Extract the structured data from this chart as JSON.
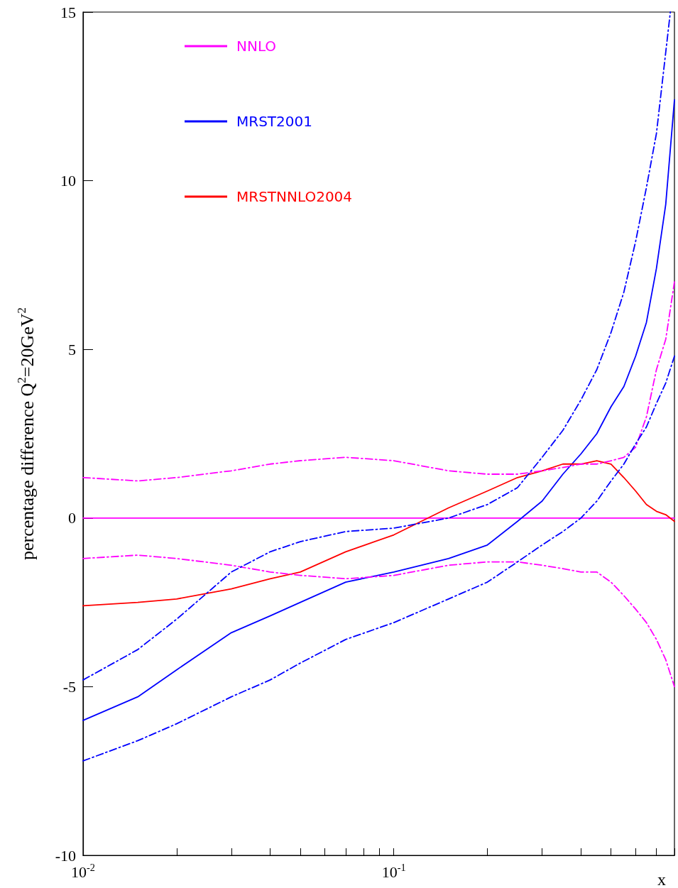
{
  "chart_data": {
    "type": "line",
    "xlabel": "x",
    "ylabel": "percentage difference Q$^{2}$=20GeV$^{2}$",
    "log": "x",
    "xlim": [
      0.01,
      0.8
    ],
    "ylim": [
      -10,
      15
    ],
    "xticks": [
      {
        "value": 0.01,
        "label": "10$^{-2}$"
      },
      {
        "value": 0.02,
        "label": null
      },
      {
        "value": 0.03,
        "label": null
      },
      {
        "value": 0.04,
        "label": null
      },
      {
        "value": 0.05,
        "label": null
      },
      {
        "value": 0.06,
        "label": null
      },
      {
        "value": 0.07,
        "label": null
      },
      {
        "value": 0.08,
        "label": null
      },
      {
        "value": 0.09,
        "label": null
      },
      {
        "value": 0.1,
        "label": "10$^{-1}$"
      },
      {
        "value": 0.2,
        "label": null
      },
      {
        "value": 0.3,
        "label": null
      },
      {
        "value": 0.4,
        "label": null
      },
      {
        "value": 0.5,
        "label": null
      },
      {
        "value": 0.6,
        "label": null
      },
      {
        "value": 0.7,
        "label": null
      },
      {
        "value": 0.8,
        "label": null
      }
    ],
    "yticks": [
      -10,
      -5,
      0,
      5,
      10,
      15
    ],
    "x": [
      0.01,
      0.015,
      0.02,
      0.03,
      0.04,
      0.05,
      0.07,
      0.1,
      0.15,
      0.2,
      0.25,
      0.3,
      0.35,
      0.4,
      0.45,
      0.5,
      0.55,
      0.6,
      0.65,
      0.7,
      0.75,
      0.8
    ],
    "marker": "none",
    "grid": false,
    "legend": "top left",
    "series": [
      {
        "name": "NNLO",
        "color": "#ff00ff",
        "line_style": "solid",
        "values": [
          0,
          0,
          0,
          0,
          0,
          0,
          0,
          0,
          0,
          0,
          0,
          0,
          0,
          0,
          0,
          0,
          0,
          0,
          0,
          0,
          0,
          0
        ]
      },
      {
        "name": "MRST2001",
        "color": "#0000ff",
        "line_style": "solid",
        "values": [
          -6.0,
          -5.3,
          -4.5,
          -3.4,
          -2.9,
          -2.5,
          -1.9,
          -1.6,
          -1.2,
          -0.8,
          -0.1,
          0.5,
          1.3,
          1.9,
          2.5,
          3.3,
          3.9,
          4.8,
          5.8,
          7.4,
          9.3,
          12.4
        ]
      },
      {
        "name": "MRSTNNLO2004",
        "color": "#ff0000",
        "line_style": "solid",
        "values": [
          -2.6,
          -2.5,
          -2.4,
          -2.1,
          -1.8,
          -1.6,
          -1.0,
          -0.5,
          0.3,
          0.8,
          1.2,
          1.4,
          1.6,
          1.6,
          1.7,
          1.6,
          1.2,
          0.8,
          0.4,
          0.2,
          0.1,
          -0.1
        ]
      },
      {
        "color": "#ff00ff",
        "line_style": "dashed",
        "values": [
          1.2,
          1.1,
          1.2,
          1.4,
          1.6,
          1.7,
          1.8,
          1.7,
          1.4,
          1.3,
          1.3,
          1.4,
          1.5,
          1.6,
          1.6,
          1.7,
          1.8,
          2.1,
          3.0,
          4.4,
          5.3,
          7.0
        ]
      },
      {
        "color": "#ff00ff",
        "line_style": "dashed",
        "values": [
          -1.2,
          -1.1,
          -1.2,
          -1.4,
          -1.6,
          -1.7,
          -1.8,
          -1.7,
          -1.4,
          -1.3,
          -1.3,
          -1.4,
          -1.5,
          -1.6,
          -1.6,
          -1.9,
          -2.3,
          -2.7,
          -3.1,
          -3.6,
          -4.2,
          -5.0
        ]
      },
      {
        "color": "#0000ff",
        "line_style": "dashed",
        "x": [
          0.01,
          0.015,
          0.02,
          0.03,
          0.04,
          0.05,
          0.07,
          0.1,
          0.15,
          0.2,
          0.25,
          0.3,
          0.35,
          0.4,
          0.45,
          0.5,
          0.55,
          0.6,
          0.65,
          0.7,
          0.776
        ],
        "values": [
          -4.8,
          -3.9,
          -3.0,
          -1.6,
          -1.0,
          -0.7,
          -0.4,
          -0.3,
          0.0,
          0.4,
          0.9,
          1.8,
          2.6,
          3.5,
          4.4,
          5.5,
          6.7,
          8.2,
          9.8,
          11.4,
          15.0
        ]
      },
      {
        "color": "#0000ff",
        "line_style": "dashed",
        "values": [
          -7.2,
          -6.6,
          -6.1,
          -5.3,
          -4.8,
          -4.3,
          -3.6,
          -3.1,
          -2.4,
          -1.9,
          -1.3,
          -0.8,
          -0.4,
          0.0,
          0.5,
          1.1,
          1.6,
          2.2,
          2.7,
          3.4,
          4.0,
          4.8
        ]
      }
    ]
  }
}
